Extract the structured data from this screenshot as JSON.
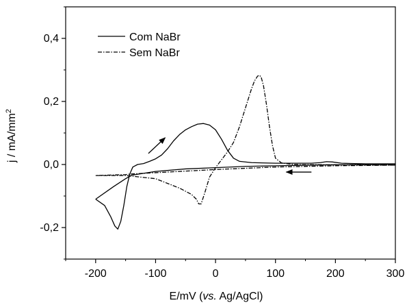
{
  "chart_data": {
    "type": "line",
    "xlabel": {
      "prefix": "E/mV (",
      "italic": "vs.",
      "suffix": " Ag/AgCl)"
    },
    "ylabel": {
      "main": "j / mA/mm",
      "sup": "2"
    },
    "xlim": [
      -250,
      300
    ],
    "ylim": [
      -0.3,
      0.5
    ],
    "xticks": [
      {
        "value": -200,
        "label": "-200"
      },
      {
        "value": -100,
        "label": "-100"
      },
      {
        "value": 0,
        "label": "0"
      },
      {
        "value": 100,
        "label": "100"
      },
      {
        "value": 200,
        "label": "200"
      },
      {
        "value": 300,
        "label": "300"
      }
    ],
    "yticks": [
      {
        "value": -0.2,
        "label": "-0,2"
      },
      {
        "value": 0.0,
        "label": "0,0"
      },
      {
        "value": 0.2,
        "label": "0,2"
      },
      {
        "value": 0.4,
        "label": "0,4"
      }
    ],
    "grid": false,
    "legend_position": "top-left",
    "series": [
      {
        "name": "Com NaBr",
        "color": "#000000",
        "dash": "solid",
        "x": [
          -200,
          -185,
          -175,
          -168,
          -163,
          -158,
          -153,
          -148,
          -143,
          -138,
          -130,
          -120,
          -110,
          -100,
          -90,
          -80,
          -70,
          -60,
          -50,
          -40,
          -30,
          -20,
          -10,
          0,
          10,
          20,
          30,
          40,
          60,
          100,
          160,
          175,
          185,
          195,
          210,
          250,
          300,
          300,
          250,
          200,
          150,
          100,
          50,
          0,
          -50,
          -100,
          -120,
          -140,
          -150,
          -170,
          -200
        ],
        "y": [
          -0.11,
          -0.13,
          -0.165,
          -0.195,
          -0.205,
          -0.18,
          -0.13,
          -0.07,
          -0.03,
          -0.008,
          0.0,
          0.003,
          0.01,
          0.018,
          0.03,
          0.05,
          0.075,
          0.095,
          0.11,
          0.12,
          0.128,
          0.13,
          0.125,
          0.11,
          0.08,
          0.045,
          0.02,
          0.01,
          0.006,
          0.004,
          0.004,
          0.006,
          0.009,
          0.008,
          0.004,
          0.002,
          0.002,
          0.001,
          0.0,
          -0.001,
          -0.002,
          -0.004,
          -0.006,
          -0.01,
          -0.014,
          -0.022,
          -0.028,
          -0.034,
          -0.045,
          -0.07,
          -0.11
        ]
      },
      {
        "name": "Sem NaBr",
        "color": "#000000",
        "dash": "dash-dot",
        "x": [
          -200,
          -150,
          -100,
          -80,
          -60,
          -40,
          -32,
          -28,
          -24,
          -18,
          -10,
          0,
          10,
          20,
          30,
          40,
          50,
          60,
          65,
          70,
          73,
          76,
          80,
          85,
          90,
          95,
          100,
          110,
          130,
          200,
          300,
          300,
          200,
          100,
          50,
          0,
          -50,
          -100,
          -130,
          -140,
          -150,
          -200
        ],
        "y": [
          -0.035,
          -0.035,
          -0.045,
          -0.06,
          -0.075,
          -0.095,
          -0.11,
          -0.125,
          -0.125,
          -0.09,
          -0.04,
          -0.01,
          0.015,
          0.04,
          0.07,
          0.12,
          0.18,
          0.24,
          0.265,
          0.28,
          0.283,
          0.278,
          0.25,
          0.19,
          0.12,
          0.06,
          0.02,
          0.005,
          0.0,
          -0.001,
          -0.002,
          -0.002,
          -0.004,
          -0.008,
          -0.012,
          -0.016,
          -0.021,
          -0.026,
          -0.029,
          -0.03,
          -0.032,
          -0.035
        ]
      }
    ],
    "arrows": [
      {
        "direction": "up-right",
        "x1": -112,
        "y1": 0.035,
        "x2": -84,
        "y2": 0.085
      },
      {
        "direction": "left",
        "x1": 160,
        "y1": -0.024,
        "x2": 118,
        "y2": -0.024
      }
    ]
  }
}
